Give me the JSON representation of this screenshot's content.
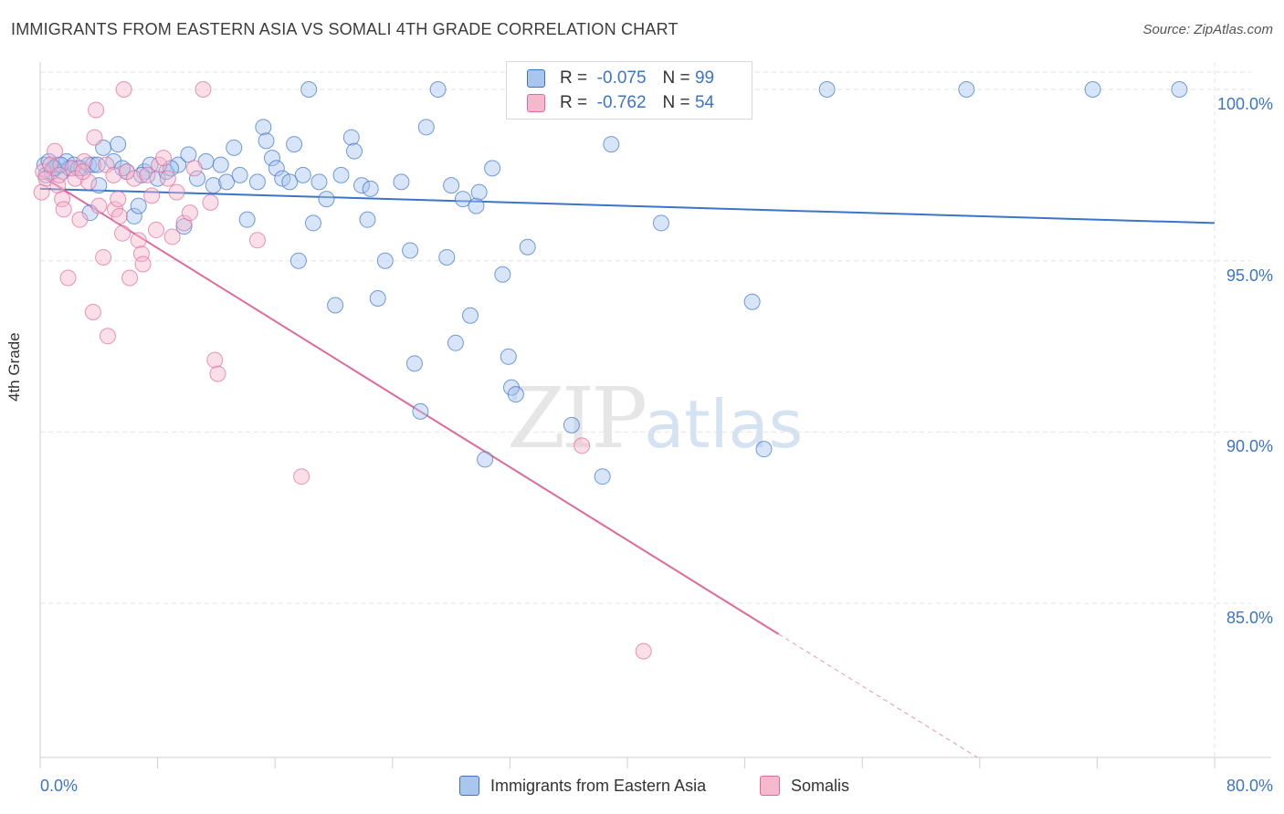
{
  "header": {
    "title": "IMMIGRANTS FROM EASTERN ASIA VS SOMALI 4TH GRADE CORRELATION CHART",
    "source": "Source: ZipAtlas.com"
  },
  "legend": {
    "series1": {
      "r_label": "R =",
      "r_value": "-0.075",
      "n_label": "N =",
      "n_value": "99"
    },
    "series2": {
      "r_label": "R =",
      "r_value": "-0.762",
      "n_label": "N =",
      "n_value": "54"
    }
  },
  "bottom_legend": {
    "series1": "Immigrants from Eastern Asia",
    "series2": "Somalis"
  },
  "watermark": {
    "zip": "ZIP",
    "atlas": "atlas"
  },
  "colors": {
    "blue": "#3b74c9",
    "blue_fill": "#a9c6ef",
    "pink": "#e0699b",
    "pink_fill": "#f5b8cd",
    "grid": "#e3e3e3"
  },
  "chart_data": {
    "type": "scatter",
    "title": "IMMIGRANTS FROM EASTERN ASIA VS SOMALI 4TH GRADE CORRELATION CHART",
    "xlabel": "",
    "ylabel": "4th Grade",
    "xlim": [
      0,
      80
    ],
    "ylim": [
      80.5,
      100.8
    ],
    "x_tick_labels": [
      "0.0%",
      "80.0%"
    ],
    "y_ticks": [
      100,
      95,
      90,
      85
    ],
    "y_tick_labels": [
      "100.0%",
      "95.0%",
      "90.0%",
      "85.0%"
    ],
    "grid": true,
    "legend_position": "top-center",
    "series": [
      {
        "name": "Immigrants from Eastern Asia",
        "color": "#3b74c9",
        "r": -0.075,
        "n": 99,
        "trend": {
          "x": [
            0,
            80
          ],
          "y": [
            97.1,
            96.1
          ],
          "style": "solid"
        },
        "points": [
          [
            0.3,
            97.8
          ],
          [
            0.4,
            97.5
          ],
          [
            0.6,
            97.9
          ],
          [
            0.8,
            97.6
          ],
          [
            1.0,
            97.7
          ],
          [
            1.2,
            97.8
          ],
          [
            1.5,
            97.6
          ],
          [
            1.8,
            97.9
          ],
          [
            2.0,
            97.7
          ],
          [
            2.3,
            97.8
          ],
          [
            2.8,
            97.7
          ],
          [
            3.3,
            97.8
          ],
          [
            3.6,
            97.8
          ],
          [
            4.0,
            97.2
          ],
          [
            4.3,
            98.3
          ],
          [
            3.4,
            96.4
          ],
          [
            5.3,
            98.4
          ],
          [
            5.0,
            97.9
          ],
          [
            5.9,
            97.6
          ],
          [
            6.4,
            96.3
          ],
          [
            6.7,
            96.6
          ],
          [
            7.1,
            97.6
          ],
          [
            7.5,
            97.8
          ],
          [
            8.0,
            97.4
          ],
          [
            8.6,
            97.6
          ],
          [
            9.4,
            97.8
          ],
          [
            9.8,
            96.0
          ],
          [
            10.1,
            98.1
          ],
          [
            10.7,
            97.4
          ],
          [
            11.3,
            97.9
          ],
          [
            11.8,
            97.2
          ],
          [
            12.3,
            97.8
          ],
          [
            12.7,
            97.3
          ],
          [
            13.2,
            98.3
          ],
          [
            13.6,
            97.5
          ],
          [
            14.1,
            96.2
          ],
          [
            14.8,
            97.3
          ],
          [
            15.2,
            98.9
          ],
          [
            15.4,
            98.5
          ],
          [
            15.8,
            98.0
          ],
          [
            16.1,
            97.7
          ],
          [
            16.5,
            97.4
          ],
          [
            17.0,
            97.3
          ],
          [
            17.3,
            98.4
          ],
          [
            17.6,
            95.0
          ],
          [
            17.9,
            97.5
          ],
          [
            18.6,
            96.1
          ],
          [
            19.0,
            97.3
          ],
          [
            19.5,
            96.8
          ],
          [
            20.1,
            93.7
          ],
          [
            20.5,
            97.5
          ],
          [
            21.2,
            98.6
          ],
          [
            21.4,
            98.2
          ],
          [
            21.9,
            97.2
          ],
          [
            22.3,
            96.2
          ],
          [
            22.5,
            97.1
          ],
          [
            23.0,
            93.9
          ],
          [
            23.5,
            95.0
          ],
          [
            24.6,
            97.3
          ],
          [
            25.2,
            95.3
          ],
          [
            25.5,
            92.0
          ],
          [
            25.9,
            90.6
          ],
          [
            26.3,
            98.9
          ],
          [
            27.7,
            95.1
          ],
          [
            28.0,
            97.2
          ],
          [
            28.3,
            92.6
          ],
          [
            28.8,
            96.8
          ],
          [
            29.3,
            93.4
          ],
          [
            29.7,
            96.6
          ],
          [
            29.9,
            97.0
          ],
          [
            30.3,
            89.2
          ],
          [
            30.8,
            97.7
          ],
          [
            31.5,
            94.6
          ],
          [
            31.9,
            92.2
          ],
          [
            32.1,
            91.3
          ],
          [
            32.4,
            91.1
          ],
          [
            33.2,
            95.4
          ],
          [
            36.2,
            90.2
          ],
          [
            38.3,
            88.7
          ],
          [
            38.9,
            98.4
          ],
          [
            42.3,
            96.1
          ],
          [
            48.5,
            93.8
          ],
          [
            49.3,
            89.5
          ],
          [
            18.3,
            100.0
          ],
          [
            27.1,
            100.0
          ],
          [
            34.6,
            100.0
          ],
          [
            37.3,
            100.0
          ],
          [
            43.9,
            100.0
          ],
          [
            53.6,
            100.0
          ],
          [
            63.1,
            100.0
          ],
          [
            71.7,
            100.0
          ],
          [
            77.6,
            100.0
          ],
          [
            0.9,
            97.7
          ],
          [
            1.4,
            97.8
          ],
          [
            2.6,
            97.7
          ],
          [
            3.9,
            97.8
          ],
          [
            5.6,
            97.7
          ],
          [
            6.9,
            97.5
          ],
          [
            8.9,
            97.7
          ]
        ]
      },
      {
        "name": "Somalis",
        "color": "#e0699b",
        "r": -0.762,
        "n": 54,
        "trend": {
          "x": [
            0,
            50.3,
            80
          ],
          "y": [
            97.5,
            84.1,
            76.2
          ],
          "style": "solid-then-dashed"
        },
        "points": [
          [
            0.1,
            97.0
          ],
          [
            0.2,
            97.6
          ],
          [
            0.4,
            97.4
          ],
          [
            0.7,
            97.8
          ],
          [
            1.0,
            98.2
          ],
          [
            1.2,
            97.2
          ],
          [
            1.5,
            96.8
          ],
          [
            1.6,
            96.5
          ],
          [
            1.9,
            94.5
          ],
          [
            2.2,
            97.7
          ],
          [
            2.4,
            97.4
          ],
          [
            2.7,
            96.2
          ],
          [
            3.0,
            97.9
          ],
          [
            3.3,
            97.3
          ],
          [
            3.6,
            93.5
          ],
          [
            3.7,
            98.6
          ],
          [
            3.8,
            99.4
          ],
          [
            4.0,
            96.6
          ],
          [
            4.3,
            95.1
          ],
          [
            4.5,
            97.8
          ],
          [
            4.6,
            92.8
          ],
          [
            5.0,
            97.5
          ],
          [
            5.1,
            96.5
          ],
          [
            5.3,
            96.8
          ],
          [
            5.4,
            96.3
          ],
          [
            5.6,
            95.8
          ],
          [
            5.9,
            97.6
          ],
          [
            6.1,
            94.5
          ],
          [
            6.4,
            97.4
          ],
          [
            6.7,
            95.6
          ],
          [
            6.9,
            95.2
          ],
          [
            7.0,
            94.9
          ],
          [
            7.3,
            97.5
          ],
          [
            7.6,
            96.9
          ],
          [
            7.9,
            95.9
          ],
          [
            8.1,
            97.8
          ],
          [
            8.4,
            98.0
          ],
          [
            8.7,
            97.4
          ],
          [
            9.0,
            95.7
          ],
          [
            9.3,
            97.0
          ],
          [
            9.8,
            96.1
          ],
          [
            10.2,
            96.4
          ],
          [
            10.5,
            97.7
          ],
          [
            11.1,
            100.0
          ],
          [
            11.6,
            96.7
          ],
          [
            11.9,
            92.1
          ],
          [
            12.1,
            91.7
          ],
          [
            14.8,
            95.6
          ],
          [
            17.8,
            88.7
          ],
          [
            36.9,
            89.6
          ],
          [
            41.1,
            83.6
          ],
          [
            5.7,
            100.0
          ],
          [
            1.3,
            97.5
          ],
          [
            2.9,
            97.6
          ]
        ]
      }
    ]
  }
}
